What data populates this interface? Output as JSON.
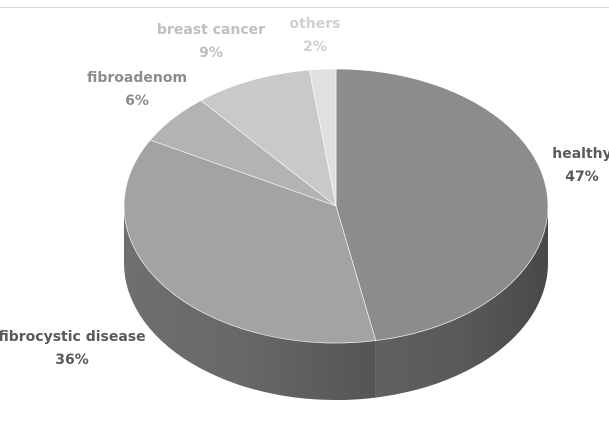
{
  "chart_data": {
    "type": "pie",
    "title": "",
    "variant": "3d",
    "start_angle_deg": 0,
    "direction": "clockwise",
    "slices": [
      {
        "label": "healthy",
        "value": 47,
        "value_label": "47%",
        "color": "#8c8c8c",
        "label_color": "#595959"
      },
      {
        "label": "fibrocystic disease",
        "value": 36,
        "value_label": "36%",
        "color": "#a3a3a3",
        "label_color": "#595959"
      },
      {
        "label": "fibroadenom",
        "value": 6,
        "value_label": "6%",
        "color": "#b3b3b3",
        "label_color": "#8c8c8c"
      },
      {
        "label": "breast cancer",
        "value": 9,
        "value_label": "9%",
        "color": "#c9c9c9",
        "label_color": "#bfbfbf"
      },
      {
        "label": "others",
        "value": 2,
        "value_label": "2%",
        "color": "#e0e0e0",
        "label_color": "#d0d0d0"
      }
    ]
  }
}
